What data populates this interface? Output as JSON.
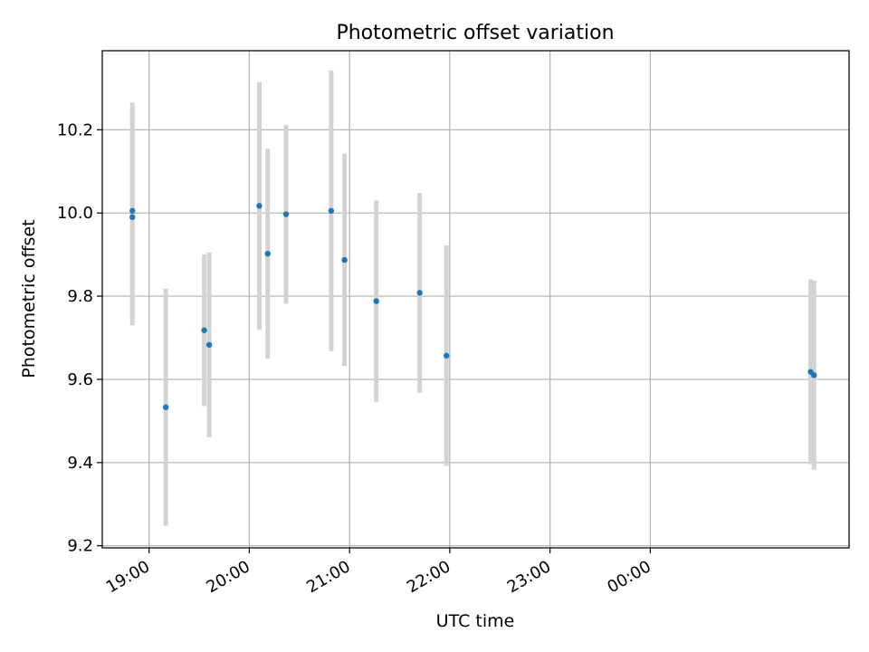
{
  "chart_data": {
    "type": "scatter",
    "title": "Photometric offset variation",
    "xlabel": "UTC time",
    "ylabel": "Photometric offset",
    "x_axis_kind": "time",
    "xlim": [
      "18:32",
      "01:59"
    ],
    "ylim": [
      9.195,
      10.39
    ],
    "x_ticks": [
      {
        "time": "19:00",
        "label": "19:00"
      },
      {
        "time": "20:00",
        "label": "20:00"
      },
      {
        "time": "21:00",
        "label": "21:00"
      },
      {
        "time": "22:00",
        "label": "22:00"
      },
      {
        "time": "23:00",
        "label": "23:00"
      },
      {
        "time": "00:00",
        "label": "00:00"
      }
    ],
    "y_ticks": [
      {
        "value": 9.2,
        "label": "9.2"
      },
      {
        "value": 9.4,
        "label": "9.4"
      },
      {
        "value": 9.6,
        "label": "9.6"
      },
      {
        "value": 9.8,
        "label": "9.8"
      },
      {
        "value": 10.0,
        "label": "10.0"
      },
      {
        "value": 10.2,
        "label": "10.2"
      }
    ],
    "grid": true,
    "point_color": "#1f77b4",
    "errorbar_color": "#d3d3d3",
    "points": [
      {
        "time": "18:50",
        "y": 10.005,
        "err": 0.26
      },
      {
        "time": "18:50",
        "y": 9.99,
        "err": 0.26
      },
      {
        "time": "19:10",
        "y": 9.533,
        "err": 0.285
      },
      {
        "time": "19:33",
        "y": 9.718,
        "err": 0.182
      },
      {
        "time": "19:36",
        "y": 9.683,
        "err": 0.222
      },
      {
        "time": "20:06",
        "y": 10.017,
        "err": 0.298
      },
      {
        "time": "20:11",
        "y": 9.902,
        "err": 0.252
      },
      {
        "time": "20:22",
        "y": 9.997,
        "err": 0.215
      },
      {
        "time": "20:49",
        "y": 10.005,
        "err": 0.337
      },
      {
        "time": "20:57",
        "y": 9.887,
        "err": 0.255
      },
      {
        "time": "21:16",
        "y": 9.788,
        "err": 0.242
      },
      {
        "time": "21:42",
        "y": 9.808,
        "err": 0.24
      },
      {
        "time": "21:58",
        "y": 9.657,
        "err": 0.265
      },
      {
        "time": "01:36",
        "y": 9.618,
        "err": 0.222
      },
      {
        "time": "01:38",
        "y": 9.61,
        "err": 0.227
      }
    ]
  }
}
